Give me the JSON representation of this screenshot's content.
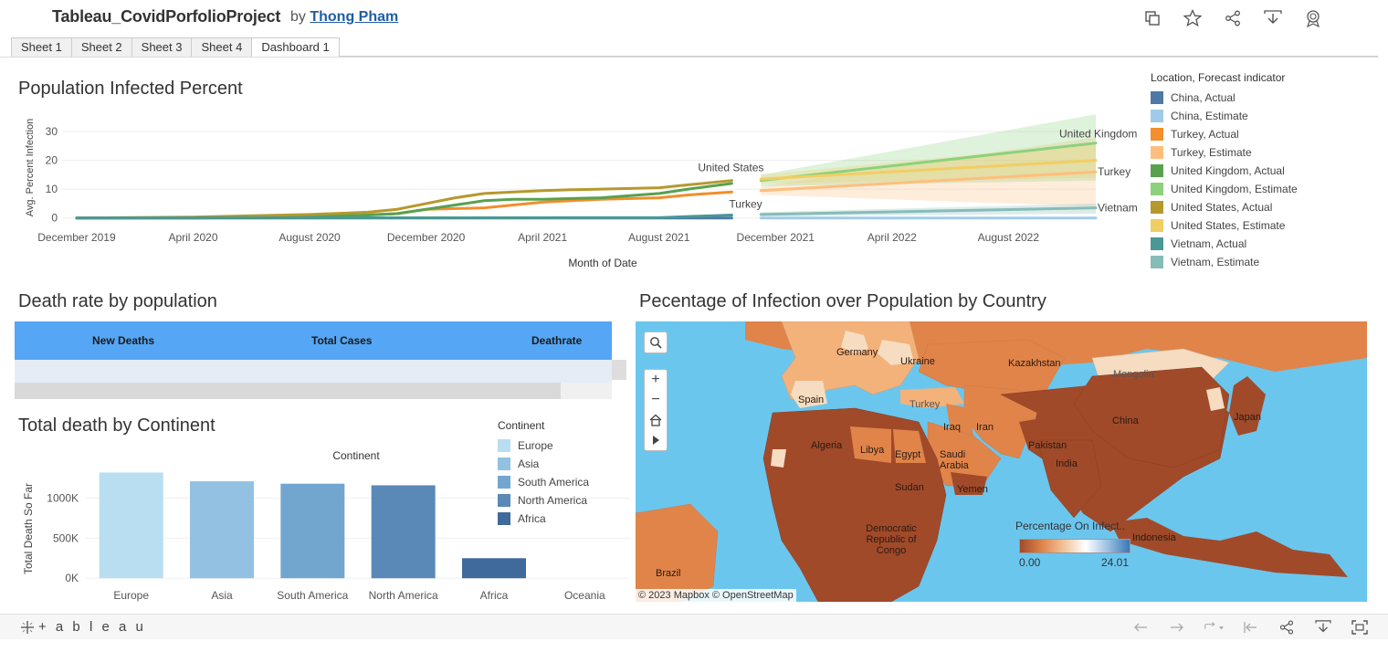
{
  "header": {
    "title": "Tableau_CovidPorfolioProject",
    "by": "by",
    "author": "Thong Pham",
    "icons": [
      "copy-icon",
      "star-icon",
      "share-icon",
      "download-icon",
      "badge-icon"
    ]
  },
  "tabs": [
    {
      "label": "Sheet 1",
      "active": false
    },
    {
      "label": "Sheet 2",
      "active": false
    },
    {
      "label": "Sheet 3",
      "active": false
    },
    {
      "label": "Sheet 4",
      "active": false
    },
    {
      "label": "Dashboard 1",
      "active": true
    }
  ],
  "infected": {
    "title": "Population Infected Percent",
    "chart_data": {
      "type": "line",
      "title": "Population Infected Percent",
      "xlabel": "Month of Date",
      "ylabel": "Avg. Percent Infection",
      "yticks": [
        "0",
        "10",
        "20",
        "30"
      ],
      "ylim": [
        -2,
        37
      ],
      "x_tick_labels": [
        "December 2019",
        "April 2020",
        "August 2020",
        "December 2020",
        "April 2021",
        "August 2021",
        "December 2021",
        "April 2022",
        "August 2022"
      ],
      "x_tick_months": [
        0,
        4,
        8,
        12,
        16,
        20,
        24,
        28,
        32
      ],
      "series": [
        {
          "name": "China, Actual",
          "color": "#4e79a7",
          "x": [
            0,
            22.5
          ],
          "y": [
            0.0,
            0.0
          ]
        },
        {
          "name": "China, Estimate",
          "color": "#a0cbe8",
          "x": [
            23.5,
            35
          ],
          "y": [
            0.0,
            0.0
          ]
        },
        {
          "name": "Turkey, Actual",
          "color": "#f28e2b",
          "x": [
            0,
            4,
            8,
            11,
            12,
            14,
            16,
            17,
            18,
            20,
            21,
            22.5
          ],
          "y": [
            0.0,
            0.0,
            0.3,
            1.5,
            3,
            3.5,
            5.5,
            6,
            6.5,
            7,
            8,
            9
          ]
        },
        {
          "name": "Turkey, Estimate",
          "color": "#ffbe7d",
          "x": [
            23.5,
            35
          ],
          "y": [
            9.5,
            16
          ],
          "band": {
            "lower": [
              8,
              4
            ],
            "upper": [
              11,
              28
            ]
          }
        },
        {
          "name": "United Kingdom, Actual",
          "color": "#59a14f",
          "x": [
            0,
            4,
            8,
            10,
            11,
            12,
            13,
            14,
            15,
            16,
            18,
            20,
            21,
            22.5
          ],
          "y": [
            0.0,
            0.0,
            0.5,
            1,
            1.5,
            3,
            4.5,
            6,
            6.5,
            6.5,
            7,
            8.5,
            10,
            12
          ]
        },
        {
          "name": "United Kingdom, Estimate",
          "color": "#8cd17d",
          "x": [
            23.5,
            35
          ],
          "y": [
            13,
            26
          ],
          "band": {
            "lower": [
              11,
              13
            ],
            "upper": [
              15,
              36
            ]
          }
        },
        {
          "name": "United States, Actual",
          "color": "#b6992d",
          "x": [
            0,
            4,
            8,
            10,
            11,
            12,
            13,
            14,
            15,
            16,
            17,
            18,
            20,
            21,
            22.5
          ],
          "y": [
            0.0,
            0.3,
            1.2,
            2,
            3,
            5,
            7,
            8.5,
            9,
            9.5,
            9.8,
            10,
            10.5,
            11.5,
            13
          ]
        },
        {
          "name": "United States, Estimate",
          "color": "#f1ce63",
          "x": [
            23.5,
            35
          ],
          "y": [
            13.5,
            20
          ],
          "band": {
            "lower": [
              12,
              14
            ],
            "upper": [
              15,
              26
            ]
          }
        },
        {
          "name": "Vietnam, Actual",
          "color": "#499894",
          "x": [
            0,
            20,
            21,
            22.5
          ],
          "y": [
            0.0,
            0.1,
            0.5,
            1
          ]
        },
        {
          "name": "Vietnam, Estimate",
          "color": "#86bcb6",
          "x": [
            23.5,
            35
          ],
          "y": [
            1.2,
            3.5
          ],
          "band": {
            "lower": [
              0.5,
              1.5
            ],
            "upper": [
              2,
              5
            ]
          }
        }
      ],
      "labels": [
        {
          "text": "United States",
          "x": 22.5,
          "y": 13
        },
        {
          "text": "Turkey",
          "x": 22.5,
          "y": 1
        },
        {
          "text": "United Kingdom",
          "x": 35,
          "y": 26
        },
        {
          "text": "Turkey",
          "x": 35,
          "y": 16
        },
        {
          "text": "Vietnam",
          "x": 35,
          "y": 3.5
        }
      ]
    },
    "legend_title": "Location, Forecast indicator"
  },
  "deathrate": {
    "title": "Death rate by population",
    "columns": [
      "New Deaths",
      "Total Cases",
      "Deathrate"
    ]
  },
  "continent": {
    "title": "Total death by Continent",
    "legend_title": "Continent",
    "chart_data": {
      "type": "bar",
      "title": "Total death by Continent",
      "header": "Continent",
      "ylabel": "Total Death So Far",
      "categories": [
        "Europe",
        "Asia",
        "South America",
        "North America",
        "Africa",
        "Oceania"
      ],
      "values": [
        1320000,
        1210000,
        1180000,
        1160000,
        250000,
        0
      ],
      "colors": [
        "#b9ddf1",
        "#93c1e1",
        "#73a6cf",
        "#5a89b8",
        "#3f6a9b",
        "#2a4f7f"
      ],
      "yticks": [
        {
          "label": "0K",
          "value": 0
        },
        {
          "label": "500K",
          "value": 500000
        },
        {
          "label": "1000K",
          "value": 1000000
        }
      ],
      "ylim": [
        -100000,
        1450000
      ]
    },
    "legend": [
      {
        "label": "Europe",
        "color": "#b9ddf1"
      },
      {
        "label": "Asia",
        "color": "#93c1e1"
      },
      {
        "label": "South America",
        "color": "#73a6cf"
      },
      {
        "label": "North America",
        "color": "#5a89b8"
      },
      {
        "label": "Africa",
        "color": "#3f6a9b"
      }
    ]
  },
  "map": {
    "title": "Pecentage of Infection over Population by Country",
    "countries": [
      "Kazakhstan",
      "Mongolia",
      "China",
      "Japan",
      "Turkey",
      "Iran",
      "Pakistan",
      "India",
      "Saudi Arabia",
      "Yemen",
      "Egypt",
      "Libya",
      "Algeria",
      "Sudan",
      "Democratic Republic of Congo",
      "Brazil",
      "Indonesia",
      "Ukraine",
      "Germany",
      "Spain",
      "Iraq"
    ],
    "legend_title": "Percentage On Infect..",
    "legend_min": "0.00",
    "legend_max": "24.01",
    "attribution": "© 2023 Mapbox  © OpenStreetMap",
    "colors": {
      "sea": "#6bc6ee",
      "high": "#a04a2a",
      "mid": "#e0844a",
      "low": "#f6dcc0"
    }
  },
  "footer": {
    "logo": "+ a b l e a u",
    "icons": [
      "undo-icon",
      "redo-icon",
      "revert-icon",
      "first-icon",
      "share-icon",
      "download-icon",
      "fullscreen-icon"
    ]
  }
}
